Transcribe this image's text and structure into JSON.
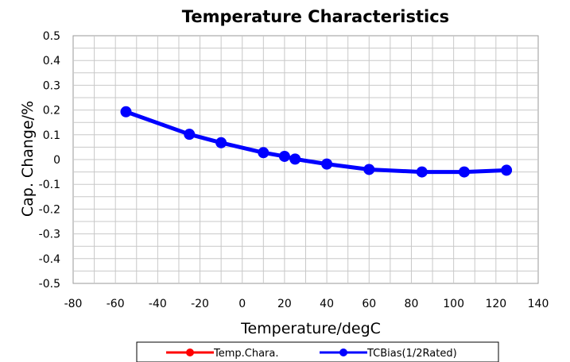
{
  "chart_data": {
    "type": "line",
    "title": "Temperature Characteristics",
    "xlabel": "Temperature/degC",
    "ylabel": "Cap. Change/%",
    "xlim": [
      -80,
      140
    ],
    "ylim": [
      -0.5,
      0.5
    ],
    "x_ticks": [
      "-80",
      "-60",
      "-40",
      "-20",
      "0",
      "20",
      "40",
      "60",
      "80",
      "100",
      "120",
      "140"
    ],
    "y_ticks": [
      "0.5",
      "0.4",
      "0.3",
      "0.2",
      "0.1",
      "0",
      "-0.1",
      "-0.2",
      "-0.3",
      "-0.4",
      "-0.5"
    ],
    "grid": true,
    "legend_position": "bottom",
    "series": [
      {
        "name": "Temp.Chara.",
        "color": "#ff0000",
        "x": [],
        "y": []
      },
      {
        "name": "TCBias(1/2Rated)",
        "color": "#0000ff",
        "x": [
          -55,
          -25,
          -10,
          10,
          20,
          25,
          40,
          60,
          85,
          105,
          125
        ],
        "y": [
          0.193,
          0.102,
          0.068,
          0.028,
          0.013,
          0.002,
          -0.018,
          -0.04,
          -0.05,
          -0.05,
          -0.043
        ]
      }
    ]
  }
}
